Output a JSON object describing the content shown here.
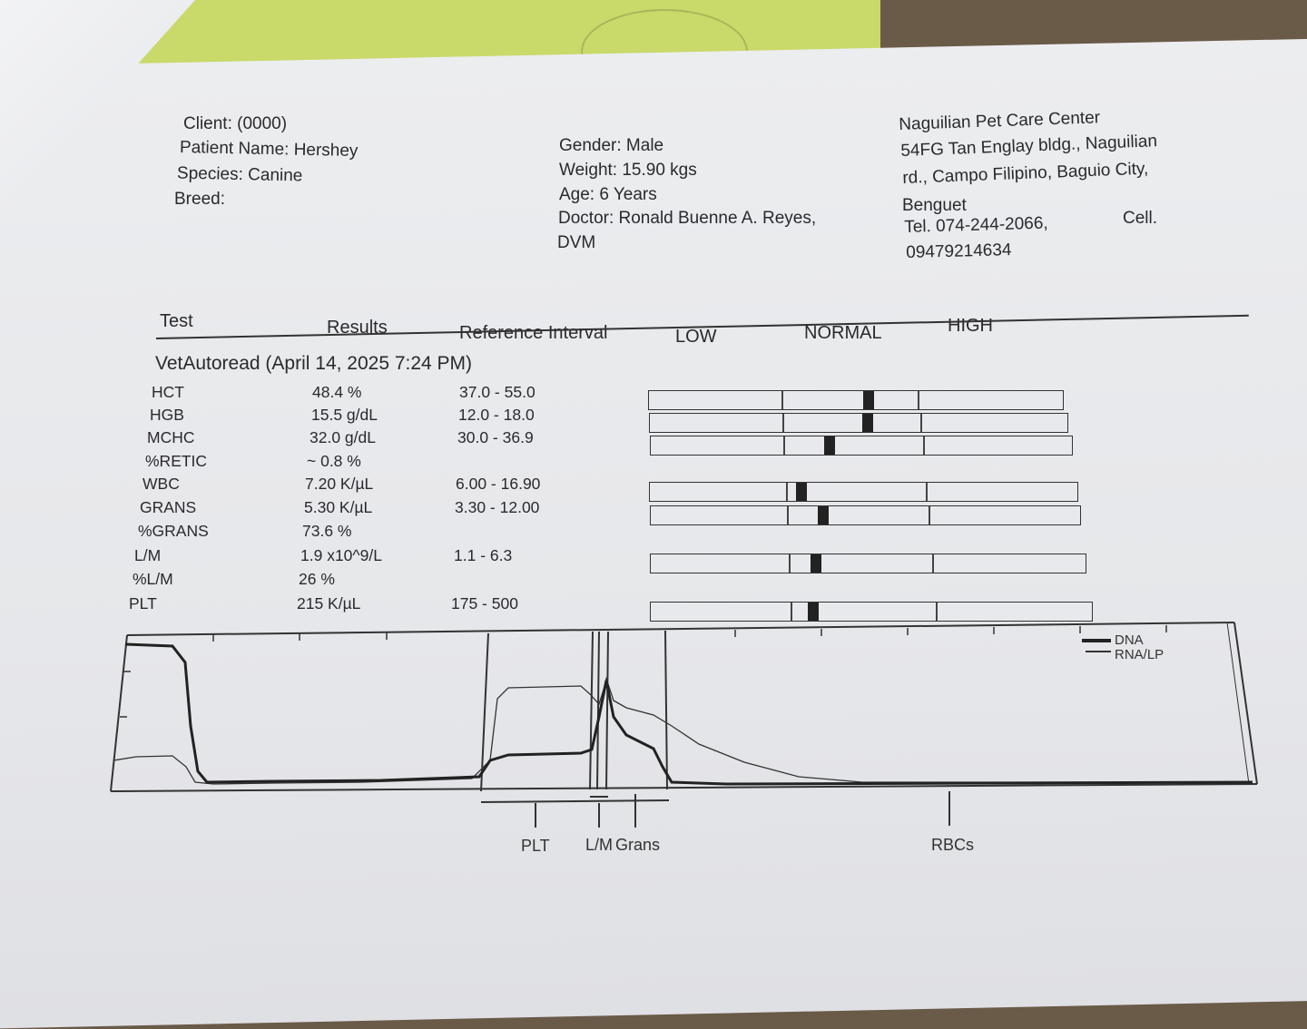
{
  "client": {
    "client_label": "Client:",
    "client_value": "(0000)",
    "patient_label": "Patient Name:",
    "patient_value": "Hershey",
    "species_label": "Species:",
    "species_value": "Canine",
    "breed_label": "Breed:"
  },
  "patient": {
    "gender": "Gender: Male",
    "weight": "Weight: 15.90 kgs",
    "age": "Age: 6 Years",
    "doctor": "Doctor: Ronald Buenne A. Reyes,",
    "doctor_suffix": "DVM"
  },
  "clinic": {
    "name": "Naguilian Pet Care Center",
    "address1": "54FG Tan Englay bldg., Naguilian",
    "address2": "rd., Campo Filipino, Baguio City,",
    "address3": "Benguet",
    "tel": "Tel. 074-244-2066,",
    "cell_label": "Cell.",
    "cell": "09479214634"
  },
  "table_header": {
    "test": "Test",
    "results": "Results",
    "reference": "Reference Interval",
    "low": "LOW",
    "normal": "NORMAL",
    "high": "HIGH"
  },
  "run_title": "VetAutoread (April 14, 2025 7:24 PM)",
  "rows": [
    {
      "test": "HCT",
      "result": "48.4 %",
      "ref": "37.0 - 55.0",
      "marker": 0.6
    },
    {
      "test": "HGB",
      "result": "15.5 g/dL",
      "ref": "12.0 - 18.0",
      "marker": 0.58
    },
    {
      "test": "MCHC",
      "result": "32.0 g/dL",
      "ref": "30.0 - 36.9",
      "marker": 0.29
    },
    {
      "test": "%RETIC",
      "result": "~ 0.8 %",
      "ref": ""
    },
    {
      "test": "WBC",
      "result": "7.20 K/µL",
      "ref": "6.00 - 16.90",
      "marker": 0.07
    },
    {
      "test": "GRANS",
      "result": "5.30 K/µL",
      "ref": "3.30 - 12.00",
      "marker": 0.22
    },
    {
      "test": "%GRANS",
      "result": "73.6 %",
      "ref": ""
    },
    {
      "test": "L/M",
      "result": "1.9 x10^9/L",
      "ref": "1.1 - 6.3",
      "marker": 0.15
    },
    {
      "test": "%L/M",
      "result": "26 %",
      "ref": ""
    },
    {
      "test": "PLT",
      "result": "215 K/µL",
      "ref": "175 - 500",
      "marker": 0.12
    }
  ],
  "graph": {
    "legend_dna": "DNA",
    "legend_rna": "RNA/LP",
    "axis_labels": [
      "PLT",
      "L/M",
      "Grans",
      "RBCs"
    ]
  }
}
